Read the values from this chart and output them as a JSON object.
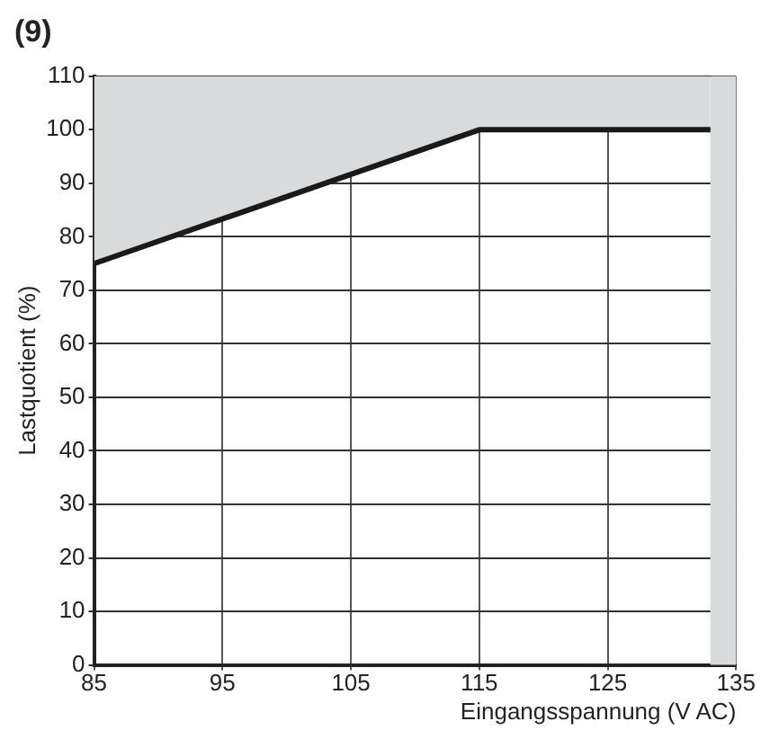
{
  "chart_data": {
    "type": "line",
    "title": "(9)",
    "xlabel": "Eingangsspannung (V AC)",
    "ylabel": "Lastquotient (%)",
    "x": [
      85,
      115,
      133
    ],
    "series": [
      {
        "color": "#1a1a1a",
        "values": [
          75,
          100,
          100
        ],
        "lower": [
          75,
          100,
          100
        ],
        "upper": [
          110,
          110,
          110
        ]
      }
    ],
    "xlim": [
      85,
      135
    ],
    "xticks": [
      85,
      95,
      105,
      115,
      125,
      135
    ],
    "ylim": [
      0,
      110
    ],
    "yticks": [
      0,
      10,
      20,
      30,
      40,
      50,
      60,
      70,
      80,
      90,
      100,
      110
    ],
    "bands": [
      {
        "axis": "x",
        "from": 133,
        "to": 135,
        "color": "#d9dadc"
      }
    ],
    "grid": true,
    "legend": false,
    "marker": "none",
    "line_style": "solid"
  }
}
